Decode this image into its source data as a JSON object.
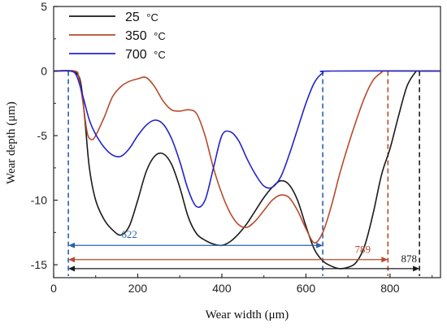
{
  "chart_data": {
    "type": "line",
    "xlabel": "Wear width (μm)",
    "ylabel": "Wear depth (μm)",
    "xlim": [
      0,
      920
    ],
    "ylim": [
      -16,
      5
    ],
    "xticks": [
      0,
      200,
      400,
      600,
      800
    ],
    "yticks": [
      5,
      0,
      -5,
      -10,
      -15
    ],
    "grid": false,
    "legend_position": "top-left",
    "series": [
      {
        "name": "25",
        "unit": "°C",
        "color": "#1a1a1a",
        "x": [
          0,
          40,
          55,
          65,
          75,
          85,
          100,
          120,
          140,
          160,
          180,
          200,
          220,
          240,
          260,
          280,
          300,
          320,
          340,
          360,
          380,
          400,
          420,
          440,
          460,
          480,
          500,
          520,
          540,
          560,
          580,
          600,
          620,
          640,
          660,
          680,
          700,
          720,
          740,
          760,
          780,
          800,
          820,
          840,
          860,
          870,
          920
        ],
        "y": [
          0,
          0,
          -0.2,
          -1.0,
          -4.0,
          -7.5,
          -10.0,
          -11.5,
          -12.3,
          -12.7,
          -12.0,
          -10.0,
          -7.8,
          -6.6,
          -6.4,
          -7.2,
          -9.0,
          -11.3,
          -12.6,
          -13.1,
          -13.4,
          -13.5,
          -13.2,
          -12.6,
          -11.8,
          -10.8,
          -9.8,
          -9.0,
          -8.5,
          -8.8,
          -10.0,
          -12.0,
          -13.8,
          -14.7,
          -15.1,
          -15.3,
          -15.2,
          -14.8,
          -13.5,
          -11.0,
          -8.0,
          -6.0,
          -3.5,
          -1.2,
          -0.1,
          0,
          0
        ]
      },
      {
        "name": "350",
        "unit": "°C",
        "color": "#b84a2c",
        "x": [
          0,
          50,
          60,
          70,
          80,
          90,
          100,
          120,
          140,
          160,
          180,
          200,
          220,
          240,
          260,
          280,
          300,
          320,
          340,
          360,
          380,
          400,
          420,
          440,
          460,
          480,
          500,
          520,
          540,
          560,
          580,
          600,
          620,
          640,
          660,
          680,
          700,
          720,
          740,
          760,
          780,
          790,
          920
        ],
        "y": [
          0,
          0,
          -0.5,
          -2.5,
          -4.8,
          -5.3,
          -5.0,
          -3.6,
          -2.0,
          -1.2,
          -0.8,
          -0.6,
          -0.5,
          -1.2,
          -2.3,
          -3.0,
          -3.1,
          -3.0,
          -3.3,
          -5.0,
          -7.5,
          -9.5,
          -11.0,
          -11.9,
          -12.1,
          -11.6,
          -10.8,
          -10.0,
          -9.6,
          -9.8,
          -10.8,
          -12.2,
          -13.3,
          -12.5,
          -10.5,
          -8.0,
          -5.8,
          -3.8,
          -2.0,
          -0.7,
          -0.1,
          0,
          0
        ]
      },
      {
        "name": "700",
        "unit": "°C",
        "color": "#2424c8",
        "x": [
          0,
          40,
          55,
          70,
          85,
          100,
          120,
          140,
          160,
          180,
          200,
          220,
          240,
          260,
          280,
          300,
          320,
          340,
          360,
          380,
          400,
          420,
          440,
          460,
          480,
          500,
          520,
          540,
          560,
          580,
          600,
          620,
          640,
          660,
          920
        ],
        "y": [
          0,
          0,
          -0.4,
          -2.0,
          -3.8,
          -4.9,
          -5.9,
          -6.5,
          -6.6,
          -6.0,
          -5.0,
          -4.2,
          -3.8,
          -4.1,
          -5.2,
          -7.0,
          -9.2,
          -10.5,
          -10.0,
          -7.5,
          -5.0,
          -4.7,
          -5.4,
          -6.8,
          -8.0,
          -8.9,
          -9.0,
          -8.2,
          -6.5,
          -4.5,
          -2.5,
          -0.9,
          -0.15,
          0,
          0
        ]
      }
    ],
    "reference_lines": [
      {
        "x": 35,
        "color": "#2a5fb0"
      },
      {
        "x": 640,
        "color": "#2a5fb0"
      },
      {
        "x": 795,
        "color": "#b84a2c"
      },
      {
        "x": 870,
        "color": "#1a1a1a"
      }
    ],
    "dimensions": [
      {
        "label": "622",
        "x_start": 35,
        "x_end": 640,
        "y": -13.5,
        "color": "#2a5fb0"
      },
      {
        "label": "789",
        "x_start": 35,
        "x_end": 795,
        "y": -14.6,
        "color": "#b84a2c"
      },
      {
        "label": "878",
        "x_start": 35,
        "x_end": 870,
        "y": -15.3,
        "color": "#1a1a1a"
      }
    ]
  }
}
